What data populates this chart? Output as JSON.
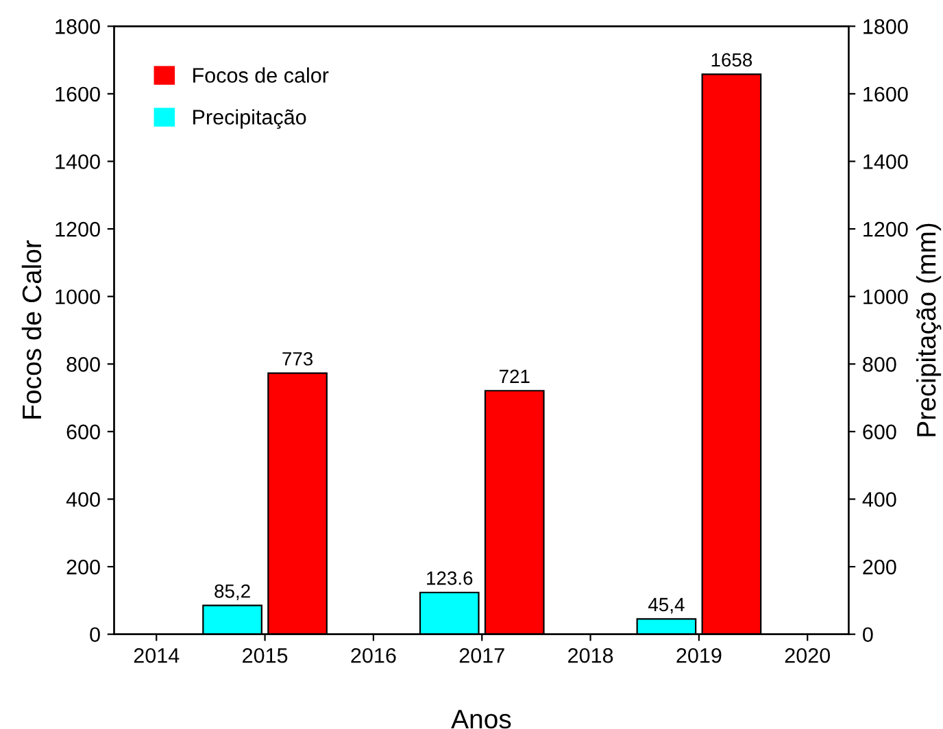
{
  "chart_data": {
    "type": "bar",
    "xlabel": "Anos",
    "ylabel": "Focos de Calor",
    "y2label": "Precipitação (mm)",
    "xlim": [
      2013.61,
      2020.38
    ],
    "xticks": [
      2014,
      2015,
      2016,
      2017,
      2018,
      2019,
      2020
    ],
    "ylim": [
      0,
      1800
    ],
    "yticks": [
      0,
      200,
      400,
      600,
      800,
      1000,
      1200,
      1400,
      1600,
      1800
    ],
    "y2lim": [
      0,
      1800
    ],
    "y2ticks": [
      0,
      200,
      400,
      600,
      800,
      1000,
      1200,
      1400,
      1600,
      1800
    ],
    "series": [
      {
        "name": "Focos de calor",
        "color": "#ff0000",
        "x": [
          2015.3,
          2017.3,
          2019.3
        ],
        "values": [
          773,
          721,
          1658
        ],
        "value_labels": [
          "773",
          "721",
          "1658"
        ]
      },
      {
        "name": "Precipitação",
        "color": "#00ffff",
        "axis": "y2",
        "x": [
          2014.7,
          2016.7,
          2018.7
        ],
        "values": [
          85.2,
          123.6,
          45.4
        ],
        "value_labels": [
          "85,2",
          "123.6",
          "45,4"
        ]
      }
    ],
    "legend": "top left",
    "grid": false
  }
}
